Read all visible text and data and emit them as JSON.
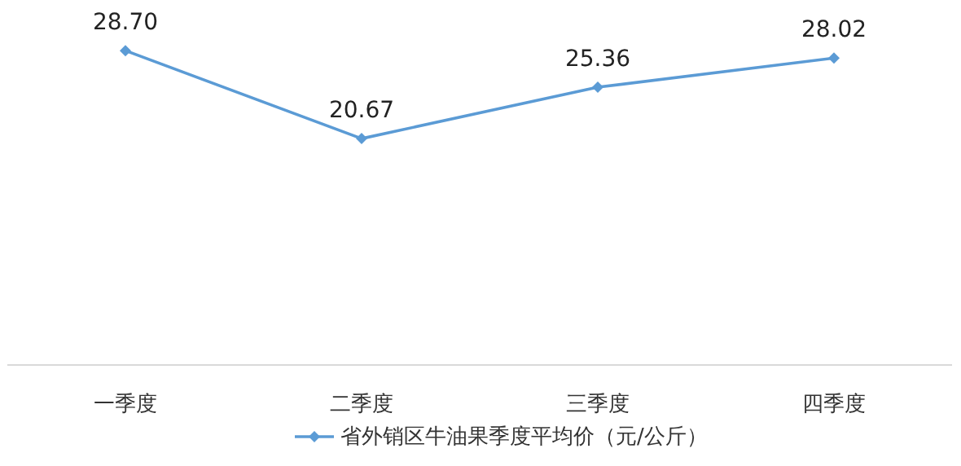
{
  "chart_data": {
    "type": "line",
    "categories": [
      "一季度",
      "二季度",
      "三季度",
      "四季度"
    ],
    "series": [
      {
        "name": "省外销区牛油果季度平均价（元/公斤）",
        "color": "#5b9bd5",
        "values": [
          28.7,
          20.67,
          25.36,
          28.02
        ],
        "value_labels": [
          "28.70",
          "20.67",
          "25.36",
          "28.02"
        ]
      }
    ],
    "legend": "bottom",
    "marker": "diamond"
  }
}
